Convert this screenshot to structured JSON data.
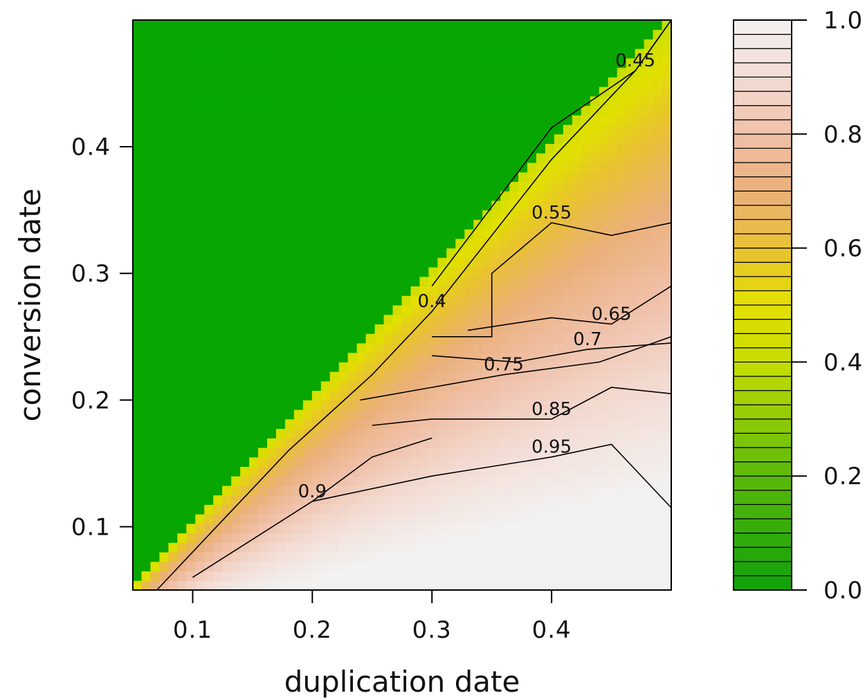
{
  "chart_data": {
    "type": "heatmap",
    "subtype": "filled-contour",
    "title": "",
    "xlabel": "duplication date",
    "ylabel": "conversion date",
    "xlim": [
      0.05,
      0.5
    ],
    "ylim": [
      0.05,
      0.5
    ],
    "x_ticks": [
      0.1,
      0.2,
      0.3,
      0.4
    ],
    "y_ticks": [
      0.1,
      0.2,
      0.3,
      0.4
    ],
    "x_tick_labels": [
      "0.1",
      "0.2",
      "0.3",
      "0.4"
    ],
    "y_tick_labels": [
      "0.1",
      "0.2",
      "0.3",
      "0.4"
    ],
    "colorbar": {
      "min": 0.0,
      "max": 1.0,
      "ticks": [
        0.0,
        0.2,
        0.4,
        0.6,
        0.8,
        1.0
      ],
      "tick_labels": [
        "0.0",
        "0.2",
        "0.4",
        "0.6",
        "0.8",
        "1.0"
      ],
      "n_levels": 40,
      "color_stops": [
        {
          "value": 0.0,
          "color": "#0fa00a"
        },
        {
          "value": 0.2,
          "color": "#5ab80a"
        },
        {
          "value": 0.4,
          "color": "#c6dd00"
        },
        {
          "value": 0.5,
          "color": "#e2e000"
        },
        {
          "value": 0.6,
          "color": "#e9c133"
        },
        {
          "value": 0.7,
          "color": "#eab07a"
        },
        {
          "value": 0.8,
          "color": "#f0c0a8"
        },
        {
          "value": 0.9,
          "color": "#f3dcd4"
        },
        {
          "value": 1.0,
          "color": "#f2f2f2"
        }
      ]
    },
    "region_below_diagonal_color": "#07a600",
    "contours": [
      {
        "level": 0.45,
        "label": "0.45",
        "points": [
          [
            0.3,
            0.29
          ],
          [
            0.4,
            0.415
          ],
          [
            0.47,
            0.46
          ],
          [
            0.5,
            0.5
          ]
        ]
      },
      {
        "level": 0.4,
        "label": "0.4",
        "points": [
          [
            0.07,
            0.05
          ],
          [
            0.12,
            0.1
          ],
          [
            0.18,
            0.16
          ],
          [
            0.25,
            0.22
          ],
          [
            0.3,
            0.27
          ],
          [
            0.4,
            0.39
          ],
          [
            0.47,
            0.46
          ],
          [
            0.5,
            0.5
          ]
        ]
      },
      {
        "level": 0.55,
        "label": "0.55",
        "points": [
          [
            0.3,
            0.25
          ],
          [
            0.35,
            0.25
          ],
          [
            0.35,
            0.3
          ],
          [
            0.4,
            0.34
          ],
          [
            0.45,
            0.33
          ],
          [
            0.5,
            0.34
          ]
        ]
      },
      {
        "level": 0.65,
        "label": "0.65",
        "points": [
          [
            0.33,
            0.255
          ],
          [
            0.4,
            0.265
          ],
          [
            0.45,
            0.26
          ],
          [
            0.5,
            0.29
          ]
        ]
      },
      {
        "level": 0.7,
        "label": "0.7",
        "points": [
          [
            0.3,
            0.235
          ],
          [
            0.37,
            0.23
          ],
          [
            0.43,
            0.24
          ],
          [
            0.5,
            0.245
          ]
        ]
      },
      {
        "level": 0.75,
        "label": "0.75",
        "points": [
          [
            0.24,
            0.2
          ],
          [
            0.3,
            0.21
          ],
          [
            0.36,
            0.22
          ],
          [
            0.44,
            0.23
          ],
          [
            0.5,
            0.25
          ]
        ]
      },
      {
        "level": 0.85,
        "label": "0.85",
        "points": [
          [
            0.25,
            0.18
          ],
          [
            0.3,
            0.185
          ],
          [
            0.4,
            0.185
          ],
          [
            0.45,
            0.21
          ],
          [
            0.5,
            0.205
          ]
        ]
      },
      {
        "level": 0.95,
        "label": "0.95",
        "points": [
          [
            0.2,
            0.12
          ],
          [
            0.3,
            0.14
          ],
          [
            0.4,
            0.155
          ],
          [
            0.45,
            0.165
          ],
          [
            0.5,
            0.115
          ]
        ]
      },
      {
        "level": 0.9,
        "label": "0.9",
        "points": [
          [
            0.1,
            0.06
          ],
          [
            0.15,
            0.09
          ],
          [
            0.2,
            0.12
          ],
          [
            0.25,
            0.155
          ],
          [
            0.3,
            0.17
          ]
        ]
      }
    ]
  }
}
